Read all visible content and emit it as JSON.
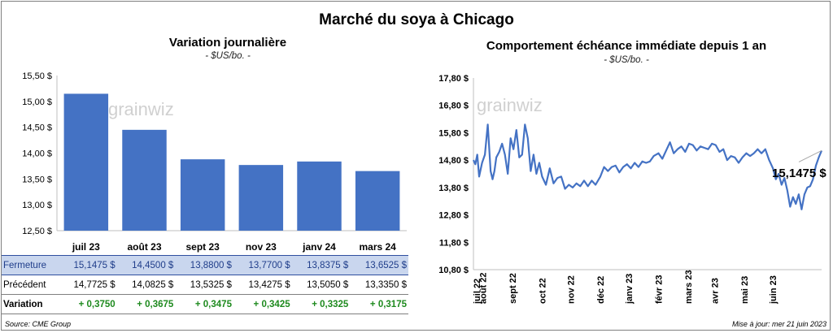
{
  "title": "Marché du soya à Chicago",
  "left_panel": {
    "title": "Variation journalière",
    "unit": "- $US/bo. -"
  },
  "right_panel": {
    "title": "Comportement échéance immédiate depuis 1 an",
    "unit": "- $US/bo. -",
    "last_value_label": "15,1475 $"
  },
  "watermark": "grainwiz",
  "table": {
    "rows": [
      {
        "label": "Fermeture",
        "cells": [
          "15,1475 $",
          "14,4500 $",
          "13,8800 $",
          "13,7700 $",
          "13,8375 $",
          "13,6525 $"
        ]
      },
      {
        "label": "Précédent",
        "cells": [
          "14,7725 $",
          "14,0825 $",
          "13,5325 $",
          "13,4275 $",
          "13,5050 $",
          "13,3350 $"
        ]
      },
      {
        "label": "Variation",
        "cells": [
          "+ 0,3750",
          "+ 0,3675",
          "+ 0,3475",
          "+ 0,3425",
          "+ 0,3325",
          "+ 0,3175"
        ]
      }
    ]
  },
  "footer": {
    "source": "Source: CME Group",
    "updated": "Mise à jour: mer 21 juin 2023"
  },
  "colors": {
    "bar": "#4472c4",
    "line": "#4472c4",
    "table_highlight": "#c9d6ee",
    "positive": "#1e8a1e"
  },
  "chart_data": [
    {
      "type": "bar",
      "title": "Variation journalière",
      "categories": [
        "juil 23",
        "août 23",
        "sept 23",
        "nov 23",
        "janv 24",
        "mars 24"
      ],
      "values": [
        15.1475,
        14.45,
        13.88,
        13.77,
        13.8375,
        13.6525
      ],
      "ylim": [
        12.5,
        15.5
      ],
      "yticks": [
        12.5,
        13.0,
        13.5,
        14.0,
        14.5,
        15.0,
        15.5
      ],
      "ytick_labels": [
        "12,50 $",
        "13,00 $",
        "13,50 $",
        "14,00 $",
        "14,50 $",
        "15,00 $",
        "15,50 $"
      ],
      "ylabel": "",
      "xlabel": "",
      "grid": false
    },
    {
      "type": "line",
      "title": "Comportement échéance immédiate depuis 1 an",
      "x_start": "2022-06-21",
      "x_end": "2023-06-21",
      "xtick_labels": [
        "juil 22",
        "août 22",
        "sept 22",
        "oct 22",
        "nov 22",
        "déc 22",
        "janv 23",
        "févr 23",
        "mars 23",
        "avr 23",
        "mai 23",
        "juin 23"
      ],
      "ylim": [
        10.8,
        17.8
      ],
      "yticks": [
        10.8,
        11.8,
        12.8,
        13.8,
        14.8,
        15.8,
        16.8,
        17.8
      ],
      "ytick_labels": [
        "10,80 $",
        "11,80 $",
        "12,80 $",
        "13,80 $",
        "14,80 $",
        "15,80 $",
        "16,80 $",
        "17,80 $"
      ],
      "series": [
        {
          "x": [
            "2022-06-21",
            "2022-06-23",
            "2022-06-25",
            "2022-06-27",
            "2022-06-30",
            "2022-07-03",
            "2022-07-06",
            "2022-07-09",
            "2022-07-11",
            "2022-07-13",
            "2022-07-15",
            "2022-07-18",
            "2022-07-21",
            "2022-07-24",
            "2022-07-27",
            "2022-07-30",
            "2022-08-02",
            "2022-08-05",
            "2022-08-08",
            "2022-08-11",
            "2022-08-14",
            "2022-08-17",
            "2022-08-20",
            "2022-08-23",
            "2022-08-26",
            "2022-08-29",
            "2022-09-01",
            "2022-09-05",
            "2022-09-09",
            "2022-09-13",
            "2022-09-17",
            "2022-09-21",
            "2022-09-25",
            "2022-09-29",
            "2022-10-03",
            "2022-10-07",
            "2022-10-11",
            "2022-10-15",
            "2022-10-19",
            "2022-10-23",
            "2022-10-27",
            "2022-11-01",
            "2022-11-05",
            "2022-11-09",
            "2022-11-13",
            "2022-11-17",
            "2022-11-21",
            "2022-11-25",
            "2022-11-29",
            "2022-12-03",
            "2022-12-07",
            "2022-12-11",
            "2022-12-15",
            "2022-12-19",
            "2022-12-23",
            "2022-12-27",
            "2023-01-01",
            "2023-01-05",
            "2023-01-09",
            "2023-01-13",
            "2023-01-17",
            "2023-01-21",
            "2023-01-25",
            "2023-01-29",
            "2023-02-02",
            "2023-02-06",
            "2023-02-10",
            "2023-02-14",
            "2023-02-18",
            "2023-02-22",
            "2023-02-26",
            "2023-03-02",
            "2023-03-06",
            "2023-03-10",
            "2023-03-14",
            "2023-03-18",
            "2023-03-22",
            "2023-03-26",
            "2023-03-30",
            "2023-04-03",
            "2023-04-07",
            "2023-04-11",
            "2023-04-15",
            "2023-04-19",
            "2023-04-23",
            "2023-04-27",
            "2023-05-01",
            "2023-05-04",
            "2023-05-07",
            "2023-05-10",
            "2023-05-13",
            "2023-05-16",
            "2023-05-19",
            "2023-05-22",
            "2023-05-25",
            "2023-05-28",
            "2023-05-31",
            "2023-06-03",
            "2023-06-06",
            "2023-06-09",
            "2023-06-12",
            "2023-06-15",
            "2023-06-18",
            "2023-06-21"
          ],
          "y": [
            14.8,
            14.65,
            15.0,
            14.2,
            14.7,
            15.0,
            16.1,
            14.4,
            14.1,
            14.4,
            14.9,
            15.1,
            15.4,
            15.0,
            14.3,
            15.6,
            15.2,
            15.9,
            14.9,
            15.0,
            16.1,
            15.6,
            14.4,
            15.0,
            14.3,
            14.7,
            14.2,
            13.9,
            14.5,
            13.95,
            14.15,
            14.2,
            13.75,
            13.9,
            13.8,
            13.95,
            13.85,
            14.05,
            13.85,
            14.05,
            13.9,
            14.2,
            14.55,
            14.4,
            14.55,
            14.6,
            14.35,
            14.55,
            14.65,
            14.5,
            14.7,
            14.55,
            14.75,
            14.7,
            14.75,
            14.95,
            15.05,
            14.85,
            15.15,
            15.45,
            15.05,
            15.2,
            15.3,
            15.1,
            15.4,
            15.35,
            15.15,
            15.3,
            15.25,
            15.2,
            15.4,
            15.35,
            15.1,
            15.2,
            14.8,
            14.95,
            14.9,
            14.7,
            14.9,
            15.05,
            14.95,
            15.05,
            15.2,
            15.05,
            15.2,
            14.8,
            14.5,
            14.1,
            14.3,
            13.9,
            14.15,
            13.7,
            13.1,
            13.45,
            13.2,
            13.55,
            13.0,
            13.55,
            13.8,
            13.85,
            14.1,
            14.6,
            14.9,
            15.1475
          ]
        }
      ],
      "xlabel": "",
      "ylabel": "",
      "grid": false
    }
  ]
}
